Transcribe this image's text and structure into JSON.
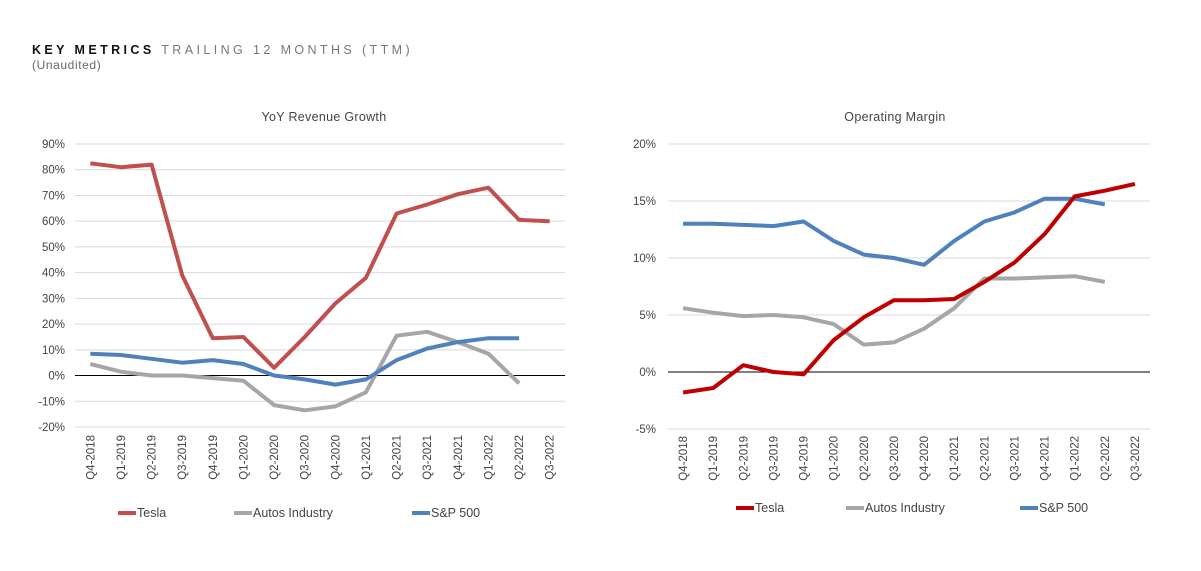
{
  "header": {
    "title_bold": "KEY METRICS",
    "title_rest": "TRAILING 12 MONTHS (TTM)",
    "subtitle": "(Unaudited)"
  },
  "colors": {
    "grid": "#d9d9d9",
    "zero_axis": "#000000",
    "tick_text": "#444444"
  },
  "chart_data": [
    {
      "type": "line",
      "title": "YoY Revenue Growth",
      "xlabel": "",
      "ylabel": "",
      "ylim": [
        -20,
        90
      ],
      "ytick_step": 10,
      "ytick_labels": [
        "90%",
        "80%",
        "70%",
        "60%",
        "50%",
        "40%",
        "30%",
        "20%",
        "10%",
        "0%",
        "-10%",
        "-20%"
      ],
      "ytick_values": [
        90,
        80,
        70,
        60,
        50,
        40,
        30,
        20,
        10,
        0,
        -10,
        -20
      ],
      "grid": true,
      "legend": "bottom",
      "categories": [
        "Q4-2018",
        "Q1-2019",
        "Q2-2019",
        "Q3-2019",
        "Q4-2019",
        "Q1-2020",
        "Q2-2020",
        "Q3-2020",
        "Q4-2020",
        "Q1-2021",
        "Q2-2021",
        "Q3-2021",
        "Q4-2021",
        "Q1-2022",
        "Q2-2022",
        "Q3-2022"
      ],
      "series": [
        {
          "name": "Tesla",
          "color": "#c0504d",
          "values": [
            82.5,
            81,
            82,
            39,
            14.5,
            15,
            3,
            15,
            28,
            38,
            63,
            66.5,
            70.5,
            73,
            60.5,
            60
          ]
        },
        {
          "name": "Autos Industry",
          "color": "#a6a6a6",
          "values": [
            4.5,
            1.5,
            0,
            0,
            -1,
            -2,
            -11.5,
            -13.5,
            -12,
            -6.5,
            15.5,
            17,
            13,
            8.5,
            -3,
            null
          ]
        },
        {
          "name": "S&P 500",
          "color": "#4f81bd",
          "values": [
            8.5,
            8,
            6.5,
            5,
            6,
            4.5,
            0,
            -1.5,
            -3.5,
            -1.5,
            6,
            10.5,
            13,
            14.5,
            14.5,
            null
          ]
        }
      ]
    },
    {
      "type": "line",
      "title": "Operating Margin",
      "xlabel": "",
      "ylabel": "",
      "ylim": [
        -5,
        20
      ],
      "ytick_step": 5,
      "ytick_labels": [
        "20%",
        "15%",
        "10%",
        "5%",
        "0%",
        "-5%"
      ],
      "ytick_values": [
        20,
        15,
        10,
        5,
        0,
        -5
      ],
      "grid": true,
      "legend": "bottom",
      "categories": [
        "Q4-2018",
        "Q1-2019",
        "Q2-2019",
        "Q3-2019",
        "Q4-2019",
        "Q1-2020",
        "Q2-2020",
        "Q3-2020",
        "Q4-2020",
        "Q1-2021",
        "Q2-2021",
        "Q3-2021",
        "Q4-2021",
        "Q1-2022",
        "Q2-2022",
        "Q3-2022"
      ],
      "series": [
        {
          "name": "Tesla",
          "color": "#c00000",
          "values": [
            -1.8,
            -1.4,
            0.6,
            0,
            -0.2,
            2.8,
            4.8,
            6.3,
            6.3,
            6.4,
            7.9,
            9.6,
            12.1,
            15.4,
            15.9,
            16.5
          ]
        },
        {
          "name": "Autos Industry",
          "color": "#a6a6a6",
          "values": [
            5.6,
            5.2,
            4.9,
            5,
            4.8,
            4.2,
            2.4,
            2.6,
            3.8,
            5.6,
            8.2,
            8.2,
            8.3,
            8.4,
            7.9,
            null
          ]
        },
        {
          "name": "S&P 500",
          "color": "#4f81bd",
          "values": [
            13,
            13,
            12.9,
            12.8,
            13.2,
            11.5,
            10.3,
            10,
            9.4,
            11.5,
            13.2,
            14,
            15.2,
            15.2,
            14.7,
            null
          ]
        }
      ]
    }
  ]
}
